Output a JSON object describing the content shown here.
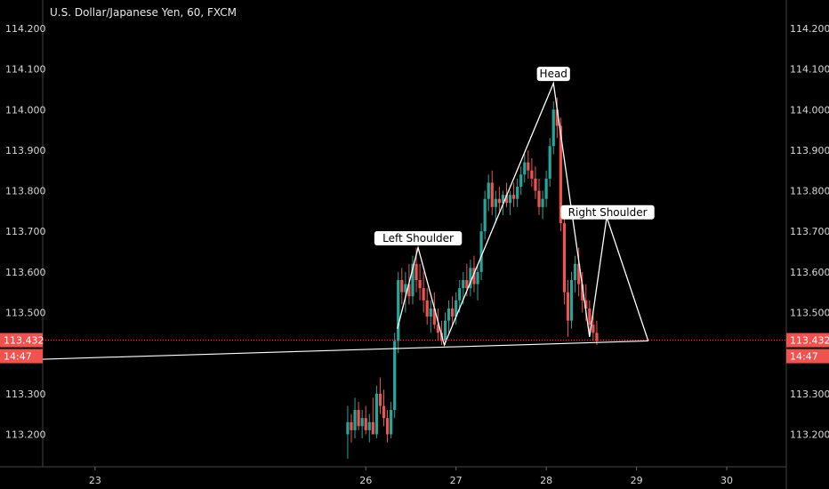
{
  "chart_data": {
    "type": "candlestick",
    "title": "U.S. Dollar/Japanese Yen, 60, FXCM",
    "colors": {
      "up": "#26a69a",
      "down": "#ef5350",
      "price_line": "#ef5350",
      "pattern": "#ffffff",
      "background": "#000000",
      "axis_text": "#d8d8d8"
    },
    "ylim": [
      113.12,
      114.27
    ],
    "y_ticks": [
      "113.200",
      "113.300",
      "113.500",
      "113.600",
      "113.700",
      "113.800",
      "113.900",
      "114.000",
      "114.100",
      "114.200"
    ],
    "xlim": [
      22.42,
      30.66
    ],
    "x_ticks": [
      {
        "label": "23",
        "day": 23
      },
      {
        "label": "26",
        "day": 26
      },
      {
        "label": "27",
        "day": 27
      },
      {
        "label": "28",
        "day": 28
      },
      {
        "label": "29",
        "day": 29
      },
      {
        "label": "30",
        "day": 30
      }
    ],
    "current_price": {
      "value": "113.432",
      "time": "14:47"
    },
    "pattern_labels": [
      {
        "text": "Left Shoulder",
        "day": 26.58,
        "price": 113.683
      },
      {
        "text": "Head",
        "day": 28.08,
        "price": 114.088
      },
      {
        "text": "Right Shoulder",
        "day": 28.68,
        "price": 113.747
      }
    ],
    "pattern_line": [
      [
        26.35,
        113.46
      ],
      [
        26.58,
        113.66
      ],
      [
        26.87,
        113.42
      ],
      [
        28.08,
        114.065
      ],
      [
        28.48,
        113.44
      ],
      [
        28.67,
        113.735
      ],
      [
        29.13,
        113.43
      ]
    ],
    "neckline": [
      [
        22.42,
        113.385
      ],
      [
        29.13,
        113.43
      ]
    ],
    "candles": [
      [
        25.8,
        113.2,
        113.27,
        113.14,
        113.23
      ],
      [
        25.84,
        113.23,
        113.25,
        113.18,
        113.21
      ],
      [
        25.88,
        113.21,
        113.29,
        113.19,
        113.26
      ],
      [
        25.92,
        113.26,
        113.28,
        113.21,
        113.22
      ],
      [
        25.96,
        113.22,
        113.26,
        113.19,
        113.24
      ],
      [
        26.0,
        113.24,
        113.27,
        113.2,
        113.21
      ],
      [
        26.04,
        113.21,
        113.25,
        113.18,
        113.23
      ],
      [
        26.08,
        113.23,
        113.29,
        113.21,
        113.2
      ],
      [
        26.12,
        113.2,
        113.32,
        113.19,
        113.3
      ],
      [
        26.16,
        113.3,
        113.34,
        113.25,
        113.27
      ],
      [
        26.2,
        113.27,
        113.31,
        113.22,
        113.24
      ],
      [
        26.24,
        113.24,
        113.26,
        113.18,
        113.2
      ],
      [
        26.28,
        113.2,
        113.28,
        113.19,
        113.26
      ],
      [
        26.32,
        113.26,
        113.45,
        113.24,
        113.43
      ],
      [
        26.36,
        113.43,
        113.6,
        113.4,
        113.58
      ],
      [
        26.4,
        113.58,
        113.61,
        113.52,
        113.55
      ],
      [
        26.44,
        113.55,
        113.6,
        113.5,
        113.57
      ],
      [
        26.48,
        113.57,
        113.62,
        113.52,
        113.54
      ],
      [
        26.52,
        113.54,
        113.64,
        113.52,
        113.62
      ],
      [
        26.56,
        113.62,
        113.66,
        113.55,
        113.58
      ],
      [
        26.6,
        113.58,
        113.62,
        113.53,
        113.56
      ],
      [
        26.64,
        113.56,
        113.6,
        113.5,
        113.53
      ],
      [
        26.68,
        113.53,
        113.56,
        113.47,
        113.49
      ],
      [
        26.72,
        113.49,
        113.53,
        113.45,
        113.51
      ],
      [
        26.76,
        113.51,
        113.55,
        113.46,
        113.47
      ],
      [
        26.8,
        113.47,
        113.51,
        113.43,
        113.45
      ],
      [
        26.84,
        113.45,
        113.48,
        113.42,
        113.43
      ],
      [
        26.88,
        113.43,
        113.5,
        113.42,
        113.48
      ],
      [
        26.92,
        113.48,
        113.53,
        113.45,
        113.51
      ],
      [
        26.96,
        113.51,
        113.54,
        113.47,
        113.49
      ],
      [
        27.0,
        113.49,
        113.55,
        113.47,
        113.53
      ],
      [
        27.04,
        113.53,
        113.58,
        113.5,
        113.56
      ],
      [
        27.08,
        113.56,
        113.6,
        113.52,
        113.58
      ],
      [
        27.12,
        113.58,
        113.62,
        113.54,
        113.56
      ],
      [
        27.16,
        113.56,
        113.63,
        113.54,
        113.61
      ],
      [
        27.2,
        113.61,
        113.64,
        113.55,
        113.57
      ],
      [
        27.24,
        113.57,
        113.62,
        113.53,
        113.6
      ],
      [
        27.28,
        113.6,
        113.72,
        113.58,
        113.7
      ],
      [
        27.32,
        113.7,
        113.8,
        113.68,
        113.78
      ],
      [
        27.36,
        113.78,
        113.84,
        113.75,
        113.82
      ],
      [
        27.4,
        113.82,
        113.85,
        113.74,
        113.76
      ],
      [
        27.44,
        113.76,
        113.8,
        113.72,
        113.78
      ],
      [
        27.48,
        113.78,
        113.81,
        113.75,
        113.77
      ],
      [
        27.52,
        113.77,
        113.8,
        113.74,
        113.79
      ],
      [
        27.56,
        113.79,
        113.82,
        113.76,
        113.77
      ],
      [
        27.6,
        113.77,
        113.8,
        113.74,
        113.79
      ],
      [
        27.64,
        113.79,
        113.82,
        113.76,
        113.78
      ],
      [
        27.68,
        113.78,
        113.83,
        113.76,
        113.81
      ],
      [
        27.72,
        113.81,
        113.86,
        113.79,
        113.84
      ],
      [
        27.76,
        113.84,
        113.89,
        113.82,
        113.87
      ],
      [
        27.8,
        113.87,
        113.9,
        113.83,
        113.85
      ],
      [
        27.84,
        113.85,
        113.88,
        113.81,
        113.83
      ],
      [
        27.88,
        113.83,
        113.86,
        113.78,
        113.8
      ],
      [
        27.92,
        113.8,
        113.83,
        113.74,
        113.76
      ],
      [
        27.96,
        113.76,
        113.8,
        113.73,
        113.78
      ],
      [
        28.0,
        113.78,
        113.85,
        113.76,
        113.83
      ],
      [
        28.04,
        113.83,
        113.93,
        113.81,
        113.91
      ],
      [
        28.08,
        113.91,
        114.02,
        113.89,
        114.0
      ],
      [
        28.12,
        114.0,
        114.03,
        113.93,
        113.96
      ],
      [
        28.16,
        113.96,
        113.98,
        113.7,
        113.72
      ],
      [
        28.2,
        113.72,
        113.75,
        113.52,
        113.55
      ],
      [
        28.24,
        113.55,
        113.58,
        113.44,
        113.48
      ],
      [
        28.28,
        113.48,
        113.6,
        113.46,
        113.58
      ],
      [
        28.32,
        113.58,
        113.64,
        113.55,
        113.62
      ],
      [
        28.36,
        113.62,
        113.66,
        113.54,
        113.57
      ],
      [
        28.4,
        113.57,
        113.6,
        113.5,
        113.53
      ],
      [
        28.44,
        113.53,
        113.57,
        113.48,
        113.51
      ],
      [
        28.48,
        113.51,
        113.53,
        113.45,
        113.47
      ],
      [
        28.52,
        113.47,
        113.5,
        113.43,
        113.45
      ],
      [
        28.56,
        113.45,
        113.48,
        113.42,
        113.43
      ]
    ]
  }
}
